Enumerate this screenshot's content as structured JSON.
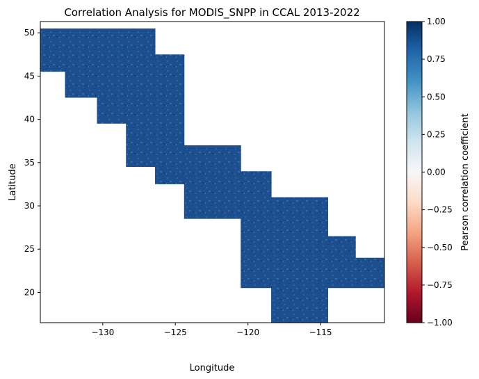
{
  "chart_data": {
    "type": "heatmap",
    "title": "Correlation Analysis for MODIS_SNPP in CCAL 2013-2022",
    "xlabel": "Longitude",
    "ylabel": "Latitude",
    "xlim": [
      -134.3,
      -110.6
    ],
    "ylim": [
      16.5,
      51.3
    ],
    "xticks": [
      -130,
      -125,
      -120,
      -115
    ],
    "xtick_labels": [
      "−130",
      "−125",
      "−120",
      "−115"
    ],
    "yticks": [
      20,
      25,
      30,
      35,
      40,
      45,
      50
    ],
    "ytick_labels": [
      "20",
      "25",
      "30",
      "35",
      "40",
      "45",
      "50"
    ],
    "colormap": "RdBu",
    "colorbar": {
      "label": "Pearson correlation coefficient",
      "range": [
        -1.0,
        1.0
      ],
      "ticks": [
        1.0,
        0.75,
        0.5,
        0.25,
        0.0,
        -0.25,
        -0.5,
        -0.75,
        -1.0
      ],
      "tick_labels": [
        "1.00",
        "0.75",
        "0.50",
        "0.25",
        "0.00",
        "−0.25",
        "−0.50",
        "−0.75",
        "−1.00"
      ]
    },
    "data_region": {
      "description_of_extent": "longitude/latitude bounds of filled correlation data",
      "blocks": [
        {
          "lon": [
            -134.3,
            -132.6
          ],
          "lat": [
            45.5,
            50.5
          ]
        },
        {
          "lon": [
            -132.6,
            -130.4
          ],
          "lat": [
            42.5,
            50.5
          ]
        },
        {
          "lon": [
            -130.4,
            -128.4
          ],
          "lat": [
            39.5,
            50.5
          ]
        },
        {
          "lon": [
            -128.4,
            -126.4
          ],
          "lat": [
            34.5,
            50.5
          ]
        },
        {
          "lon": [
            -126.4,
            -124.4
          ],
          "lat": [
            32.5,
            47.5
          ]
        },
        {
          "lon": [
            -124.4,
            -120.5
          ],
          "lat": [
            28.5,
            37.0
          ]
        },
        {
          "lon": [
            -120.5,
            -118.4
          ],
          "lat": [
            20.5,
            34.0
          ]
        },
        {
          "lon": [
            -118.4,
            -114.5
          ],
          "lat": [
            16.5,
            31.0
          ]
        },
        {
          "lon": [
            -114.5,
            -112.6
          ],
          "lat": [
            20.5,
            26.5
          ]
        },
        {
          "lon": [
            -112.6,
            -110.6
          ],
          "lat": [
            20.5,
            24.0
          ]
        }
      ],
      "dominant_value": 0.85
    }
  }
}
